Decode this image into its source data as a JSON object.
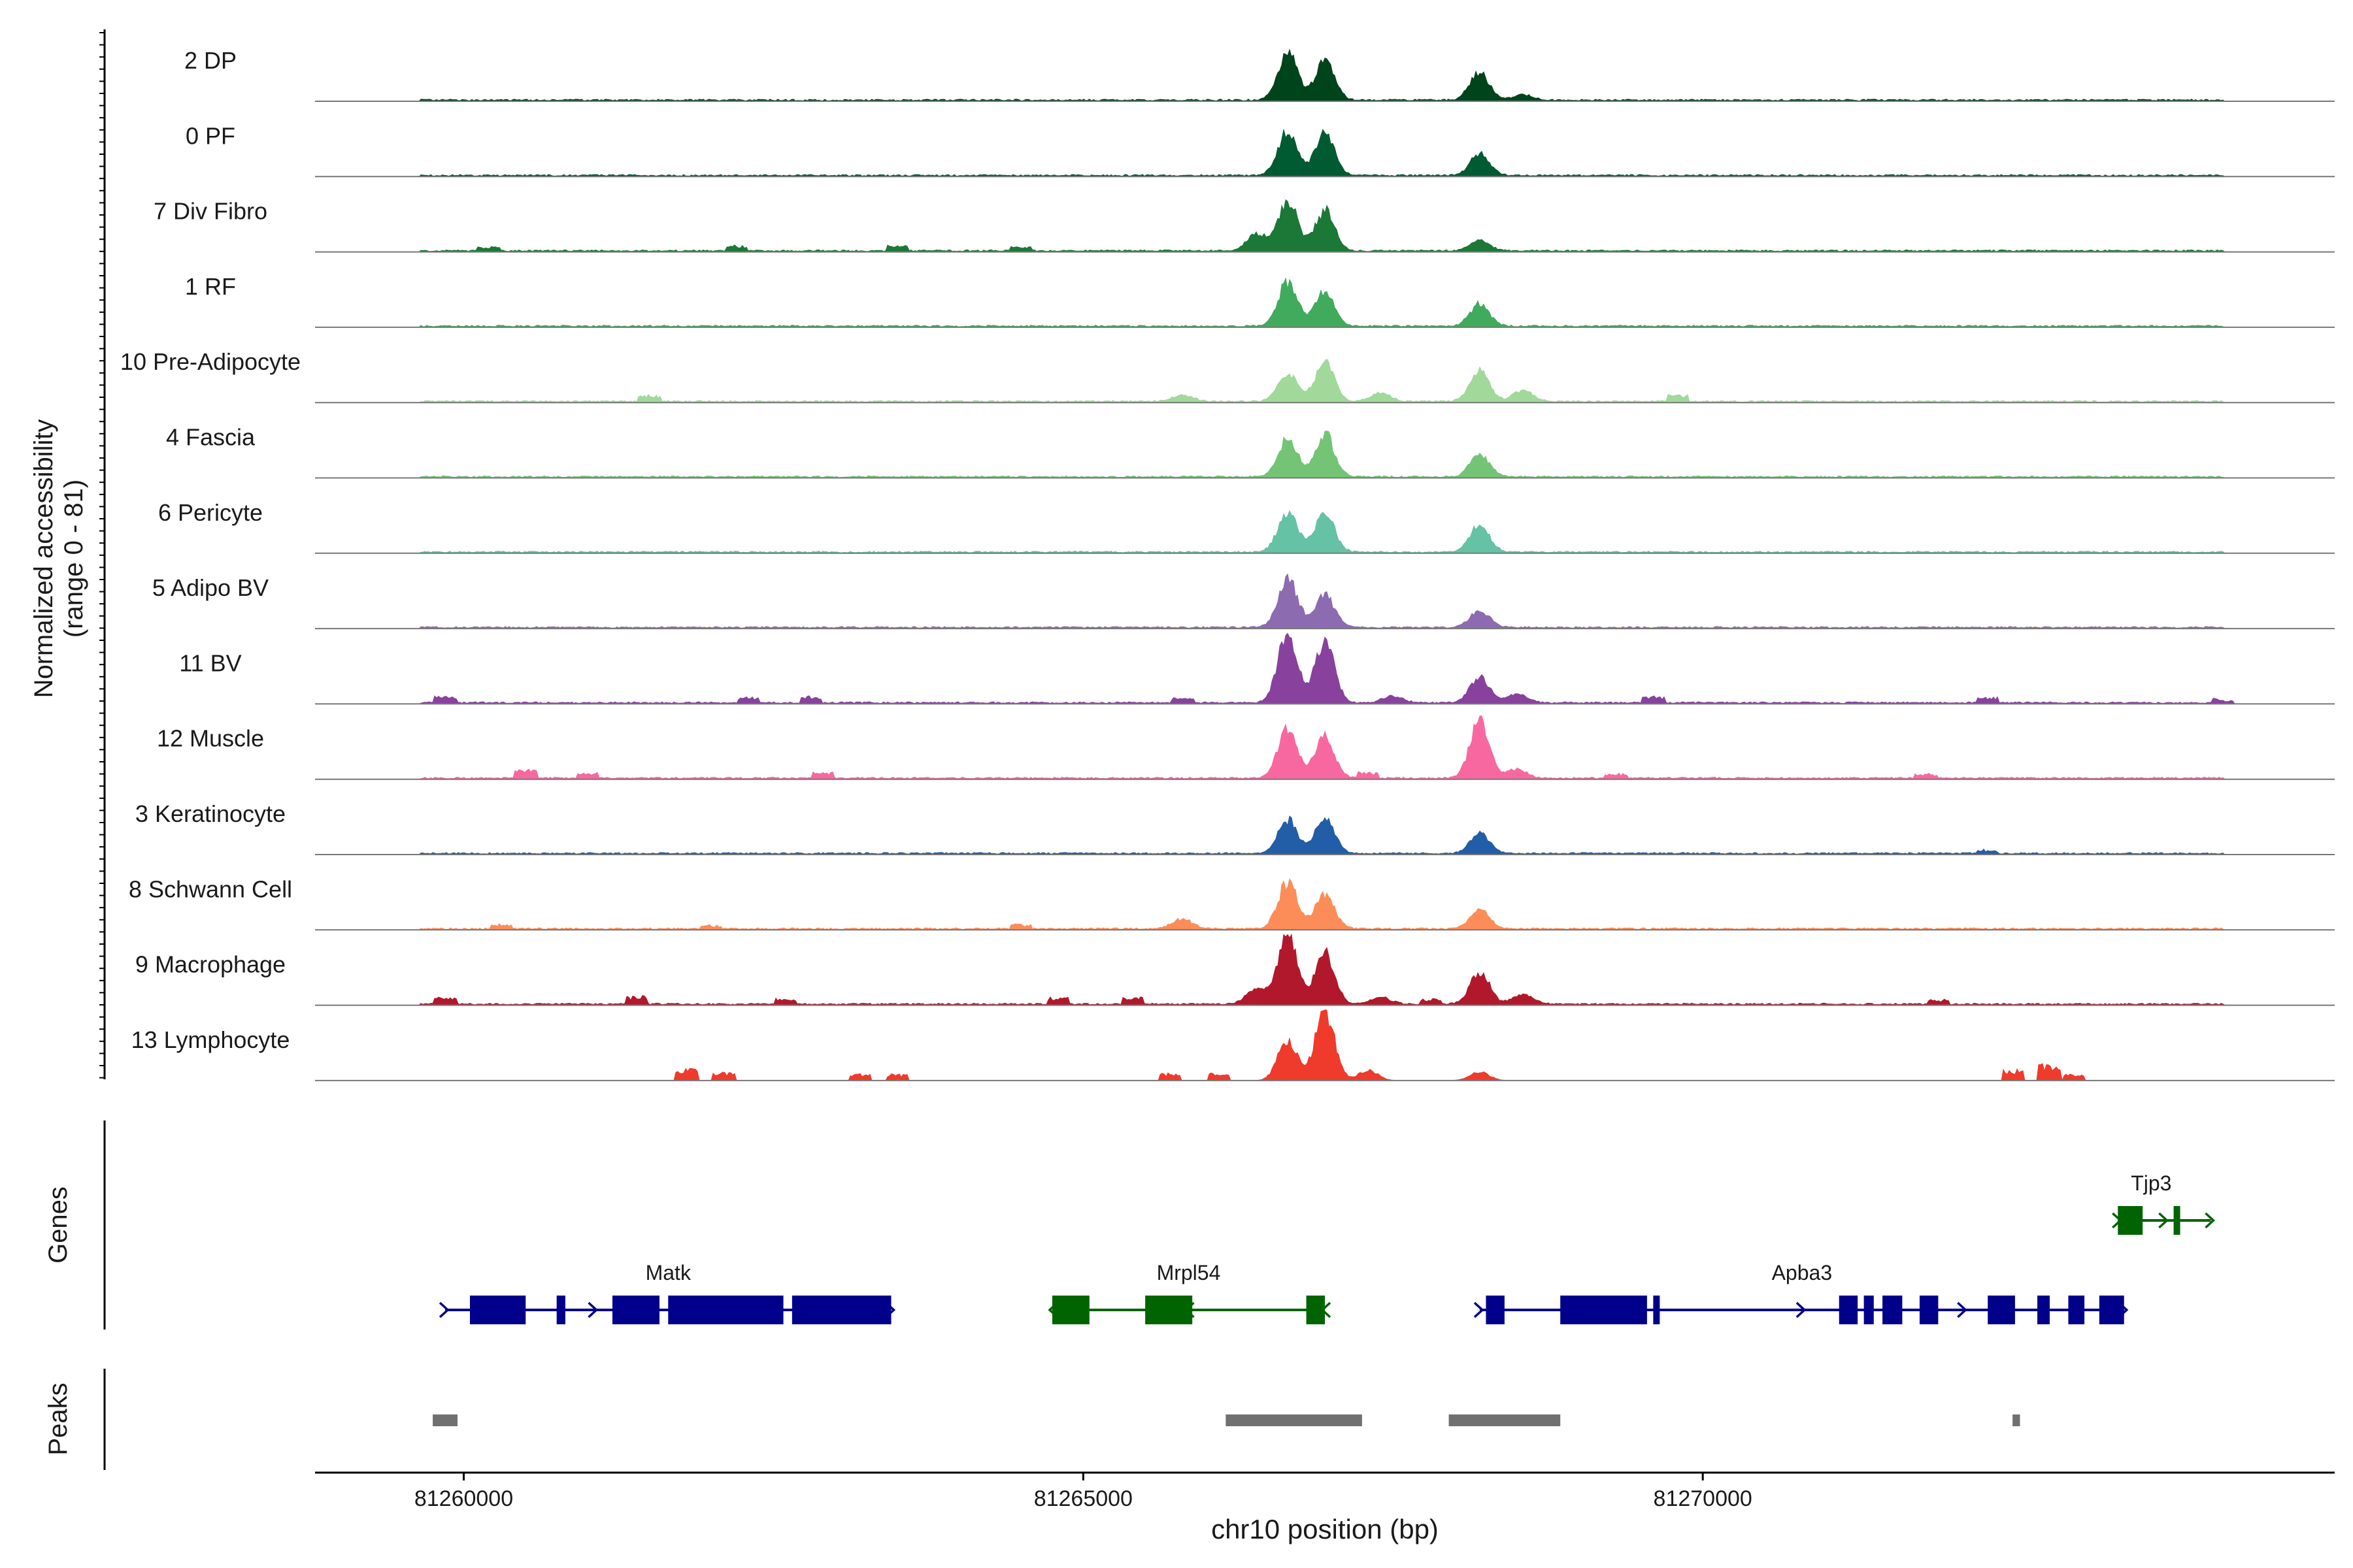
{
  "chart_data": {
    "type": "area",
    "title": "",
    "ylabel": "Normalized accessibility",
    "ylabel_range": "(range 0 - 81)",
    "xlabel": "chr10 position (bp)",
    "xlim": [
      81258800,
      81275100
    ],
    "ylim": [
      0,
      81
    ],
    "x_ticks": [
      {
        "value": 81260000,
        "label": "81260000"
      },
      {
        "value": 81265000,
        "label": "81265000"
      },
      {
        "value": 81270000,
        "label": "81270000"
      }
    ],
    "genes_label": "Genes",
    "peaks_label": "Peaks",
    "tracks": [
      {
        "name": "2 DP",
        "color": "#00441b",
        "peaks": [
          [
            81266650,
            55
          ],
          [
            81266950,
            45
          ],
          [
            81268200,
            32
          ],
          [
            81268550,
            6
          ]
        ],
        "bg": 2,
        "islands": []
      },
      {
        "name": "0 PF",
        "color": "#005a32",
        "peaks": [
          [
            81266650,
            52
          ],
          [
            81266950,
            50
          ],
          [
            81268200,
            26
          ]
        ],
        "bg": 2,
        "islands": []
      },
      {
        "name": "7 Div Fibro",
        "color": "#1b7837",
        "peaks": [
          [
            81266400,
            20
          ],
          [
            81266650,
            60
          ],
          [
            81266950,
            48
          ],
          [
            81268200,
            12
          ]
        ],
        "bg": 2,
        "islands": [
          [
            81260200,
            5
          ],
          [
            81262200,
            6
          ],
          [
            81263500,
            7
          ],
          [
            81264500,
            5
          ]
        ]
      },
      {
        "name": "1 RF",
        "color": "#41ab5d",
        "peaks": [
          [
            81266650,
            52
          ],
          [
            81266950,
            40
          ],
          [
            81268200,
            26
          ]
        ],
        "bg": 2,
        "islands": []
      },
      {
        "name": "10 Pre-Adipocyte",
        "color": "#a1d99b",
        "peaks": [
          [
            81265800,
            8
          ],
          [
            81266650,
            33
          ],
          [
            81266950,
            45
          ],
          [
            81267400,
            10
          ],
          [
            81268200,
            38
          ],
          [
            81268550,
            14
          ]
        ],
        "bg": 2,
        "islands": [
          [
            81261500,
            7
          ],
          [
            81269800,
            8
          ]
        ]
      },
      {
        "name": "4 Fascia",
        "color": "#74c476",
        "peaks": [
          [
            81266650,
            45
          ],
          [
            81266950,
            50
          ],
          [
            81268200,
            26
          ]
        ],
        "bg": 2,
        "islands": []
      },
      {
        "name": "6 Pericyte",
        "color": "#66c2a4",
        "peaks": [
          [
            81266650,
            48
          ],
          [
            81266950,
            45
          ],
          [
            81268200,
            33
          ]
        ],
        "bg": 2,
        "islands": []
      },
      {
        "name": "5 Adipo BV",
        "color": "#8c6bb1",
        "peaks": [
          [
            81266650,
            58
          ],
          [
            81266950,
            38
          ],
          [
            81268200,
            20
          ]
        ],
        "bg": 2,
        "islands": []
      },
      {
        "name": "11 BV",
        "color": "#88419d",
        "peaks": [
          [
            81266650,
            81
          ],
          [
            81266950,
            70
          ],
          [
            81267500,
            8
          ],
          [
            81268200,
            30
          ],
          [
            81268500,
            10
          ]
        ],
        "bg": 2,
        "islands": [
          [
            81259850,
            9
          ],
          [
            81262300,
            7
          ],
          [
            81262800,
            7
          ],
          [
            81265800,
            7
          ],
          [
            81269600,
            7
          ],
          [
            81272300,
            7
          ],
          [
            81274200,
            5
          ]
        ]
      },
      {
        "name": "12 Muscle",
        "color": "#f768a1",
        "peaks": [
          [
            81266650,
            58
          ],
          [
            81266950,
            48
          ],
          [
            81268200,
            68
          ],
          [
            81268500,
            10
          ]
        ],
        "bg": 2,
        "islands": [
          [
            81260500,
            10
          ],
          [
            81261000,
            6
          ],
          [
            81262900,
            7
          ],
          [
            81267300,
            7
          ],
          [
            81269300,
            6
          ],
          [
            81271800,
            5
          ]
        ]
      },
      {
        "name": "3 Keratinocyte",
        "color": "#225ea8",
        "peaks": [
          [
            81266650,
            40
          ],
          [
            81266950,
            42
          ],
          [
            81268200,
            24
          ]
        ],
        "bg": 2,
        "islands": [
          [
            81272300,
            4
          ]
        ]
      },
      {
        "name": "8 Schwann Cell",
        "color": "#fc8d59",
        "peaks": [
          [
            81265800,
            12
          ],
          [
            81266650,
            55
          ],
          [
            81266950,
            40
          ],
          [
            81268200,
            22
          ]
        ],
        "bg": 2,
        "islands": [
          [
            81260300,
            5
          ],
          [
            81262000,
            4
          ],
          [
            81264500,
            5
          ]
        ]
      },
      {
        "name": "9 Macrophage",
        "color": "#b2182b",
        "peaks": [
          [
            81266400,
            20
          ],
          [
            81266650,
            81
          ],
          [
            81266950,
            62
          ],
          [
            81267400,
            8
          ],
          [
            81268200,
            38
          ],
          [
            81268550,
            12
          ]
        ],
        "bg": 2,
        "islands": [
          [
            81259850,
            8
          ],
          [
            81261400,
            9
          ],
          [
            81262600,
            7
          ],
          [
            81264800,
            8
          ],
          [
            81265400,
            8
          ],
          [
            81267800,
            6
          ],
          [
            81271900,
            5
          ]
        ]
      },
      {
        "name": "13 Lymphocyte",
        "color": "#ef3b2c",
        "peaks": [
          [
            81266650,
            48
          ],
          [
            81266950,
            81
          ],
          [
            81267300,
            12
          ],
          [
            81268200,
            10
          ]
        ],
        "bg": 0,
        "islands": [
          [
            81261800,
            14
          ],
          [
            81262100,
            10
          ],
          [
            81263200,
            9
          ],
          [
            81263500,
            8
          ],
          [
            81265700,
            9
          ],
          [
            81266100,
            9
          ],
          [
            81272500,
            14
          ],
          [
            81272800,
            20
          ],
          [
            81273000,
            8
          ]
        ]
      }
    ],
    "genes": [
      {
        "name": "Matk",
        "color": "#00008b",
        "start": 81259850,
        "end": 81263450,
        "strand": "+",
        "row": 2,
        "exons": [
          [
            81260050,
            81260500
          ],
          [
            81260750,
            81260820
          ],
          [
            81261200,
            81261580
          ],
          [
            81261650,
            81262580
          ],
          [
            81262650,
            81263450
          ]
        ]
      },
      {
        "name": "Mrpl54",
        "color": "#006400",
        "start": 81264750,
        "end": 81266950,
        "strand": "-",
        "row": 2,
        "exons": [
          [
            81264750,
            81265050
          ],
          [
            81265500,
            81265880
          ],
          [
            81266800,
            81266950
          ]
        ]
      },
      {
        "name": "Apba3",
        "color": "#00008b",
        "start": 81268200,
        "end": 81273400,
        "strand": "+",
        "row": 2,
        "exons": [
          [
            81268250,
            81268400
          ],
          [
            81268850,
            81269550
          ],
          [
            81269600,
            81269650
          ],
          [
            81271100,
            81271250
          ],
          [
            81271300,
            81271380
          ],
          [
            81271450,
            81271610
          ],
          [
            81271750,
            81271900
          ],
          [
            81272300,
            81272520
          ],
          [
            81272700,
            81272800
          ],
          [
            81272950,
            81273080
          ],
          [
            81273200,
            81273400
          ]
        ]
      },
      {
        "name": "Tjp3",
        "color": "#006400",
        "start": 81273350,
        "end": 81274100,
        "strand": "+",
        "row": 1,
        "exons": [
          [
            81273350,
            81273550
          ],
          [
            81273800,
            81273850
          ]
        ]
      }
    ],
    "peaks_regions": [
      [
        81259750,
        81259950
      ],
      [
        81266150,
        81267250
      ],
      [
        81267950,
        81268850
      ],
      [
        81272500,
        81272560
      ]
    ]
  }
}
